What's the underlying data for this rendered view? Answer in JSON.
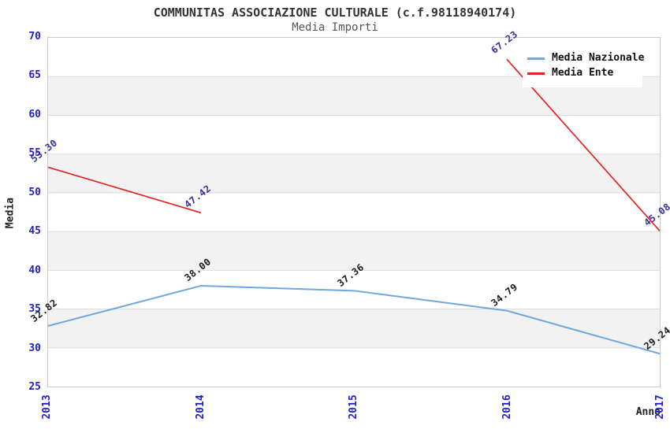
{
  "header": {
    "title": "COMMUNITAS ASSOCIAZIONE CULTURALE (c.f.98118940174)",
    "subtitle": "Media Importi"
  },
  "colors": {
    "band_fill": "#f2f2f2",
    "grid_line": "#dcdcdc",
    "frame_border": "#c9c9c9",
    "axis_tick_text": "#2222cc",
    "title_text": "#333333",
    "subtitle_text": "#555555",
    "axis_title_text": "#222222",
    "series_nazionale": "#6fa8dc",
    "series_ente": "#e42222",
    "value_label_nazionale": "#1a1a1a",
    "value_label_ente": "#333399"
  },
  "axes": {
    "ylabel": "Media",
    "xlabel": "Anno",
    "y_tick_labels": [
      "25",
      "30",
      "35",
      "40",
      "45",
      "50",
      "55",
      "60",
      "65",
      "70"
    ],
    "x_tick_labels": [
      "2013",
      "2014",
      "2015",
      "2016",
      "2017"
    ]
  },
  "legend": {
    "items": [
      {
        "label": "Media Nazionale",
        "color": "#6fa8dc"
      },
      {
        "label": "Media Ente",
        "color": "#e42222"
      }
    ]
  },
  "chart_data": {
    "type": "line",
    "title": "COMMUNITAS ASSOCIAZIONE CULTURALE (c.f.98118940174)",
    "subtitle": "Media Importi",
    "xlabel": "Anno",
    "ylabel": "Media",
    "x": [
      "2013",
      "2014",
      "2015",
      "2016",
      "2017"
    ],
    "ylim": [
      25,
      70
    ],
    "ytick_step": 5,
    "grid": true,
    "legend_position": "top-right",
    "band_ranges": [
      [
        30,
        35
      ],
      [
        40,
        45
      ],
      [
        50,
        55
      ],
      [
        60,
        65
      ]
    ],
    "series": [
      {
        "name": "Media Nazionale",
        "color": "#6fa8dc",
        "stroke_width": 2,
        "label_color": "#1a1a1a",
        "values": [
          32.82,
          38.0,
          37.36,
          34.79,
          29.24
        ],
        "labels": [
          "32.82",
          "38.00",
          "37.36",
          "34.79",
          "29.24"
        ]
      },
      {
        "name": "Media Ente",
        "color": "#e42222",
        "stroke_width": 1.7,
        "label_color": "#333399",
        "values": [
          53.3,
          47.42,
          null,
          67.23,
          45.08
        ],
        "labels": [
          "53.30",
          "47.42",
          null,
          "67.23",
          "45.08"
        ]
      }
    ]
  }
}
